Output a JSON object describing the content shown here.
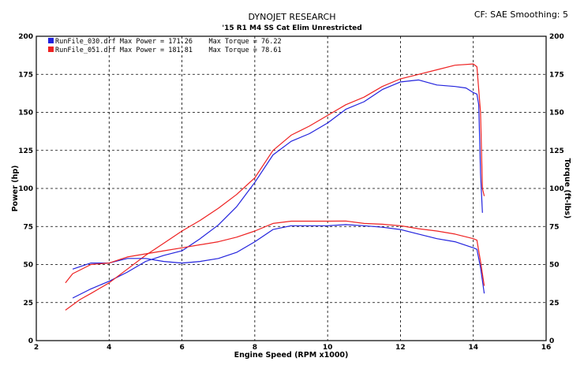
{
  "header": {
    "title": "DYNOJET RESEARCH",
    "subtitle": "'15 R1 M4 SS Cat Elim Unrestricted",
    "corner": "CF: SAE  Smoothing: 5"
  },
  "chart_data": {
    "type": "line",
    "xlabel": "Engine Speed (RPM x1000)",
    "ylabel_left": "Power (hp)",
    "ylabel_right": "Torque (ft-lbs)",
    "xlim": [
      2,
      16
    ],
    "ylim": [
      0,
      200
    ],
    "xticks": [
      2,
      4,
      6,
      8,
      10,
      12,
      14,
      16
    ],
    "yticks": [
      0,
      25,
      50,
      75,
      100,
      125,
      150,
      175,
      200
    ],
    "grid": true,
    "legend": [
      {
        "text": "RunFile_030.drf Max Power = 171.26    Max Torque = 76.22",
        "color": "#2222dd"
      },
      {
        "text": "RunFile_051.drf Max Power = 181.81    Max Torque = 78.61",
        "color": "#ee2222"
      }
    ],
    "series": [
      {
        "name": "RunFile_030.drf Power",
        "color": "#2222dd",
        "points": [
          [
            3.0,
            28
          ],
          [
            3.5,
            34
          ],
          [
            4.0,
            39
          ],
          [
            4.5,
            45
          ],
          [
            5.0,
            52
          ],
          [
            5.5,
            56
          ],
          [
            6.0,
            59
          ],
          [
            6.5,
            67
          ],
          [
            7.0,
            76
          ],
          [
            7.5,
            88
          ],
          [
            8.0,
            104
          ],
          [
            8.5,
            122
          ],
          [
            9.0,
            131
          ],
          [
            9.5,
            136
          ],
          [
            10.0,
            143
          ],
          [
            10.5,
            152
          ],
          [
            11.0,
            157
          ],
          [
            11.5,
            165
          ],
          [
            12.0,
            170
          ],
          [
            12.5,
            171.3
          ],
          [
            13.0,
            168
          ],
          [
            13.5,
            167
          ],
          [
            13.8,
            166
          ],
          [
            14.0,
            163
          ],
          [
            14.1,
            162
          ],
          [
            14.15,
            155
          ],
          [
            14.2,
            110
          ],
          [
            14.25,
            84
          ]
        ]
      },
      {
        "name": "RunFile_051.drf Power",
        "color": "#ee2222",
        "points": [
          [
            2.8,
            20
          ],
          [
            3.2,
            27
          ],
          [
            3.5,
            31
          ],
          [
            4.0,
            38
          ],
          [
            4.5,
            47
          ],
          [
            5.0,
            56
          ],
          [
            5.5,
            64
          ],
          [
            6.0,
            72
          ],
          [
            6.5,
            79
          ],
          [
            7.0,
            87
          ],
          [
            7.5,
            96
          ],
          [
            8.0,
            107
          ],
          [
            8.5,
            125
          ],
          [
            9.0,
            135
          ],
          [
            9.5,
            141
          ],
          [
            10.0,
            148
          ],
          [
            10.5,
            155
          ],
          [
            11.0,
            160
          ],
          [
            11.5,
            167
          ],
          [
            12.0,
            172
          ],
          [
            12.5,
            175
          ],
          [
            13.0,
            178
          ],
          [
            13.5,
            181
          ],
          [
            14.0,
            181.8
          ],
          [
            14.1,
            180
          ],
          [
            14.2,
            150
          ],
          [
            14.25,
            100
          ],
          [
            14.3,
            95
          ]
        ]
      },
      {
        "name": "RunFile_030.drf Torque",
        "color": "#2222dd",
        "points": [
          [
            3.0,
            47
          ],
          [
            3.5,
            51
          ],
          [
            4.0,
            51
          ],
          [
            4.5,
            54
          ],
          [
            5.0,
            54
          ],
          [
            5.5,
            52
          ],
          [
            6.0,
            51
          ],
          [
            6.5,
            52
          ],
          [
            7.0,
            54
          ],
          [
            7.5,
            58
          ],
          [
            8.0,
            65
          ],
          [
            8.5,
            73
          ],
          [
            9.0,
            75.5
          ],
          [
            9.5,
            75.5
          ],
          [
            10.0,
            75.5
          ],
          [
            10.5,
            76.2
          ],
          [
            11.0,
            75.5
          ],
          [
            11.5,
            74.5
          ],
          [
            12.0,
            73
          ],
          [
            12.5,
            70
          ],
          [
            13.0,
            67
          ],
          [
            13.5,
            65
          ],
          [
            14.0,
            61
          ],
          [
            14.1,
            60
          ],
          [
            14.2,
            48
          ],
          [
            14.3,
            31
          ]
        ]
      },
      {
        "name": "RunFile_051.drf Torque",
        "color": "#ee2222",
        "points": [
          [
            2.8,
            38
          ],
          [
            3.0,
            44
          ],
          [
            3.5,
            50
          ],
          [
            4.0,
            51
          ],
          [
            4.5,
            55
          ],
          [
            5.0,
            57
          ],
          [
            5.5,
            59
          ],
          [
            6.0,
            61
          ],
          [
            6.5,
            63
          ],
          [
            7.0,
            65
          ],
          [
            7.5,
            68
          ],
          [
            8.0,
            72
          ],
          [
            8.5,
            77
          ],
          [
            9.0,
            78.5
          ],
          [
            9.5,
            78.5
          ],
          [
            10.0,
            78.5
          ],
          [
            10.5,
            78.6
          ],
          [
            11.0,
            77
          ],
          [
            11.5,
            76.5
          ],
          [
            12.0,
            75.5
          ],
          [
            12.5,
            73.5
          ],
          [
            13.0,
            72
          ],
          [
            13.5,
            70
          ],
          [
            14.0,
            67
          ],
          [
            14.1,
            66
          ],
          [
            14.2,
            52
          ],
          [
            14.3,
            36
          ]
        ]
      }
    ]
  }
}
